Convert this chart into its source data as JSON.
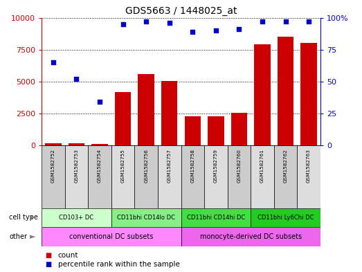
{
  "title": "GDS5663 / 1448025_at",
  "samples": [
    "GSM1582752",
    "GSM1582753",
    "GSM1582754",
    "GSM1582755",
    "GSM1582756",
    "GSM1582757",
    "GSM1582758",
    "GSM1582759",
    "GSM1582760",
    "GSM1582761",
    "GSM1582762",
    "GSM1582763"
  ],
  "counts": [
    150,
    200,
    100,
    4200,
    5600,
    5050,
    2300,
    2300,
    2550,
    7900,
    8500,
    8000
  ],
  "percentiles": [
    65,
    52,
    34,
    95,
    97,
    96,
    89,
    90,
    91,
    97,
    97,
    97
  ],
  "ylim_left": [
    0,
    10000
  ],
  "ylim_right": [
    0,
    100
  ],
  "yticks_left": [
    0,
    2500,
    5000,
    7500,
    10000
  ],
  "yticks_right": [
    0,
    25,
    50,
    75,
    100
  ],
  "bar_color": "#cc0000",
  "dot_color": "#0000cc",
  "cell_type_groups": [
    {
      "label": "CD103+ DC",
      "start": 0,
      "end": 3,
      "color": "#ccffcc"
    },
    {
      "label": "CD11bhi CD14lo DC",
      "start": 3,
      "end": 6,
      "color": "#88ee88"
    },
    {
      "label": "CD11bhi CD14hi DC",
      "start": 6,
      "end": 9,
      "color": "#44dd44"
    },
    {
      "label": "CD11bhi Ly6Chi DC",
      "start": 9,
      "end": 12,
      "color": "#22cc22"
    }
  ],
  "other_groups": [
    {
      "label": "conventional DC subsets",
      "start": 0,
      "end": 6,
      "color": "#ff88ff"
    },
    {
      "label": "monocyte-derived DC subsets",
      "start": 6,
      "end": 12,
      "color": "#ee66ee"
    }
  ],
  "legend_count_color": "#cc0000",
  "legend_pct_color": "#0000cc",
  "background_color": "#ffffff",
  "axis_label_color_left": "#cc0000",
  "axis_label_color_right": "#0000cc",
  "sample_col1": "#cccccc",
  "sample_col2": "#dddddd"
}
